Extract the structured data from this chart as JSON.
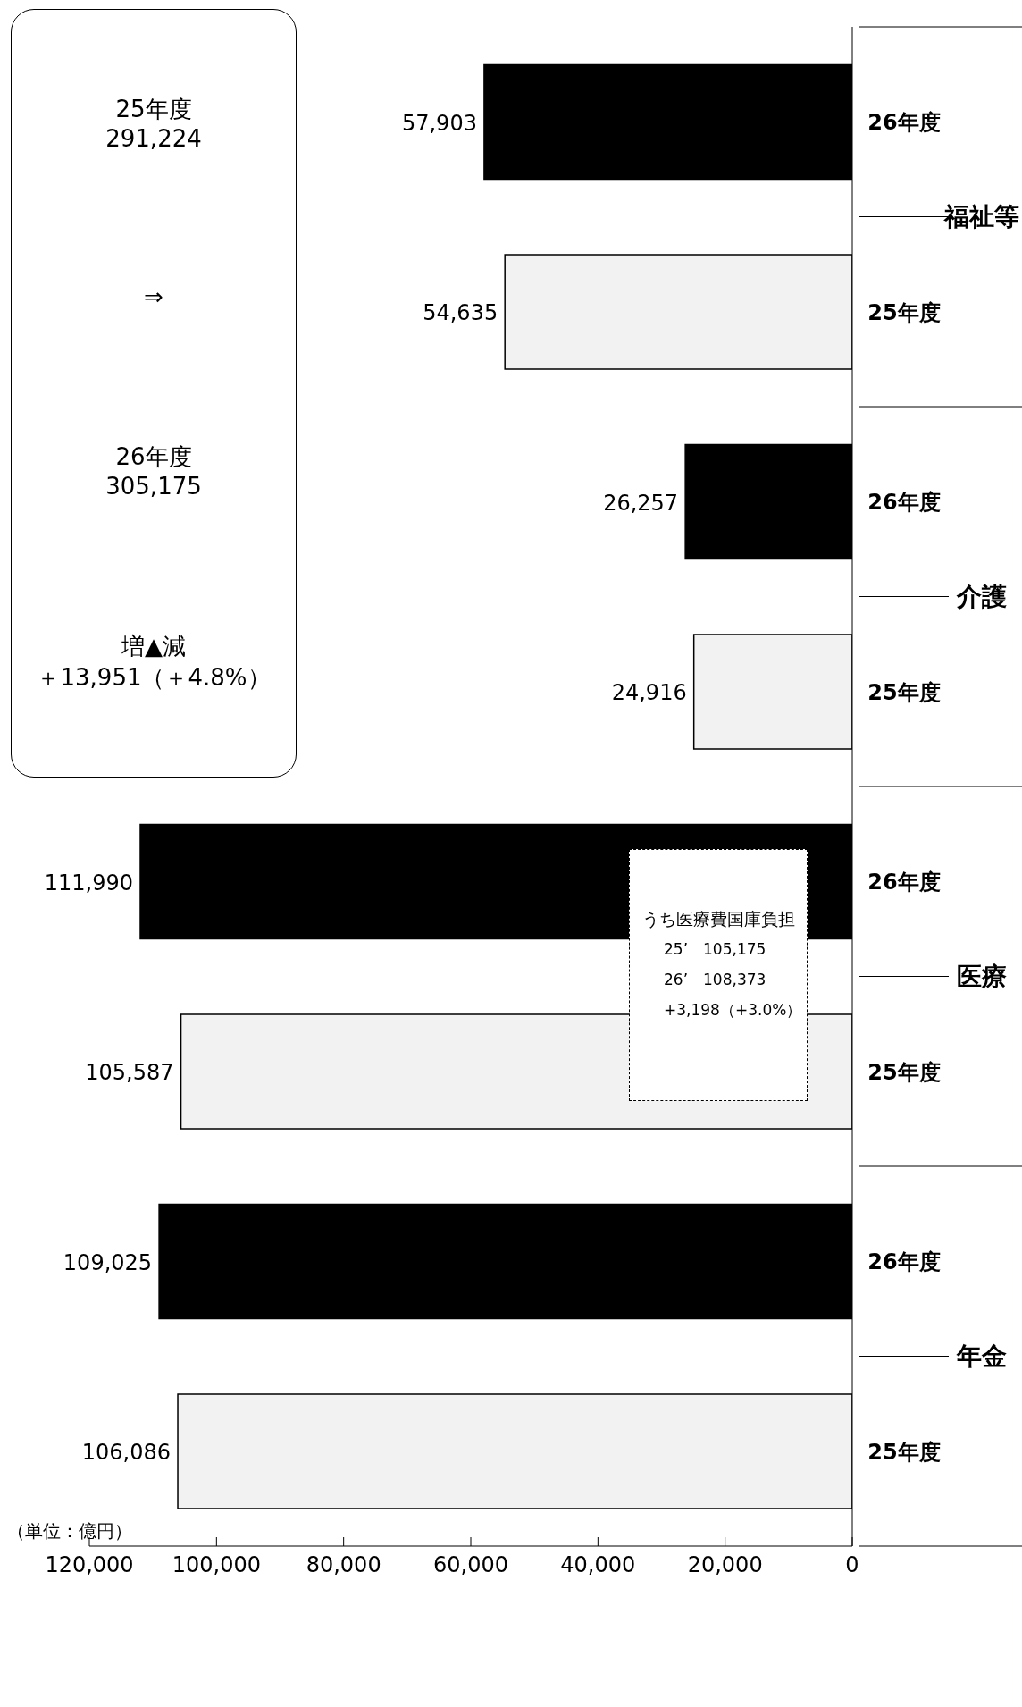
{
  "chart_data": {
    "type": "bar",
    "orientation": "horizontal",
    "categories": [
      "26年度",
      "25年度",
      "26年度",
      "25年度",
      "26年度",
      "25年度",
      "26年度",
      "25年度"
    ],
    "values": [
      57903,
      54635,
      26257,
      24916,
      111990,
      105587,
      109025,
      106086
    ],
    "colors": [
      "#000000",
      "#f2f2f2",
      "#000000",
      "#f2f2f2",
      "#000000",
      "#f2f2f2",
      "#000000",
      "#f2f2f2"
    ],
    "value_labels": [
      "57,903",
      "54,635",
      "26,257",
      "24,916",
      "111,990",
      "105,587",
      "109,025",
      "106,086"
    ],
    "xlim": [
      120000,
      0
    ],
    "xticks": [
      {
        "value": 120000,
        "label": "120,000"
      },
      {
        "value": 100000,
        "label": "100,000"
      },
      {
        "value": 80000,
        "label": "80,000"
      },
      {
        "value": 60000,
        "label": "60,000"
      },
      {
        "value": 40000,
        "label": "40,000"
      },
      {
        "value": 20000,
        "label": "20,000"
      },
      0
    ],
    "grid": false,
    "legend": false,
    "annotations": [
      "（単位：億円）",
      "福祉等",
      "介護",
      "医療",
      "年金",
      "25年度",
      "⇒",
      "26年度",
      "増▲減",
      "291,224",
      "305,175",
      "＋13,951（＋4.8%）",
      "うち医療費国庫負担",
      "25’　105,175",
      "26’　108,373",
      "+3,198（+3.0%）"
    ]
  }
}
